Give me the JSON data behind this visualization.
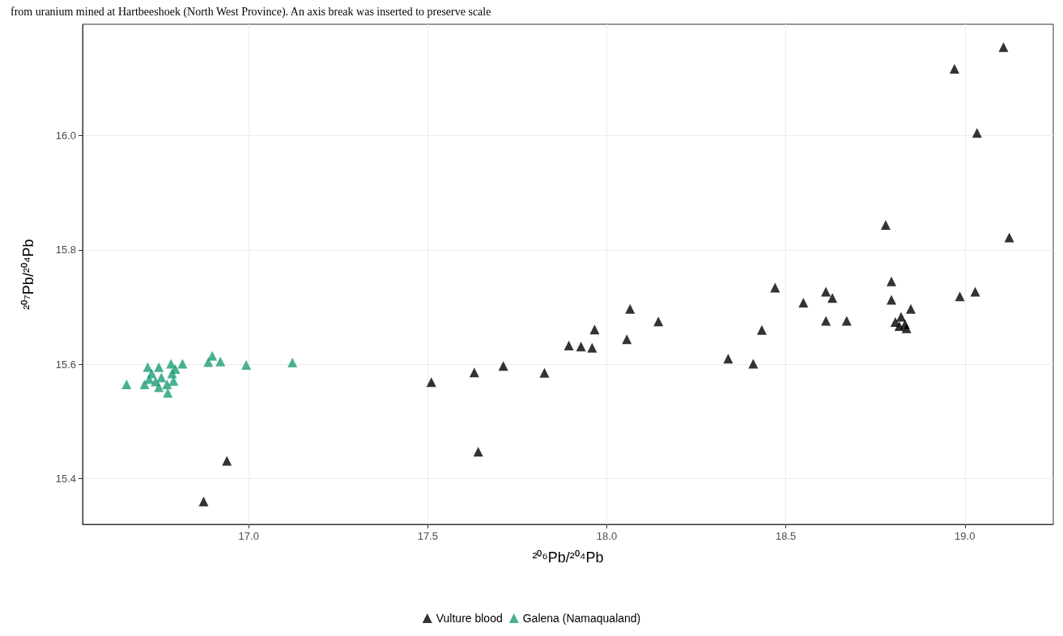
{
  "chart_data": {
    "type": "scatter",
    "title": "from uranium mined at Hartbeeshoek (North West Province). An axis break was inserted to preserve scale",
    "xlabel": "²⁰⁶Pb/²⁰⁴Pb",
    "ylabel": "²⁰⁷Pb/²⁰⁴Pb",
    "xlim": [
      16.536,
      19.247
    ],
    "ylim": [
      15.32,
      16.195
    ],
    "xticks": [
      {
        "value": 17,
        "label": "17.0"
      },
      17.5,
      {
        "value": 18,
        "label": "18.0"
      },
      18.5,
      {
        "value": 19,
        "label": "19.0"
      }
    ],
    "yticks": [
      15.4,
      15.6,
      15.8,
      {
        "value": 16,
        "label": "16.0"
      }
    ],
    "grid": true,
    "legend": "bottom",
    "marker": "triangle",
    "series": [
      {
        "name": "Vulture blood",
        "color": "#000000",
        "x": [
          16.874,
          16.939,
          17.51,
          17.63,
          17.641,
          17.711,
          17.826,
          17.894,
          17.928,
          17.959,
          17.966,
          18.056,
          18.065,
          18.144,
          18.339,
          18.409,
          18.433,
          18.47,
          18.549,
          18.612,
          18.63,
          18.612,
          18.67,
          18.779,
          18.795,
          18.795,
          18.806,
          18.822,
          18.817,
          18.837,
          18.849,
          18.833,
          18.986,
          19.029,
          19.034,
          18.971,
          19.108,
          19.124
        ],
        "values": [
          15.36,
          15.431,
          15.569,
          15.586,
          15.447,
          15.597,
          15.585,
          15.633,
          15.631,
          15.629,
          15.661,
          15.644,
          15.697,
          15.675,
          15.61,
          15.601,
          15.66,
          15.734,
          15.708,
          15.727,
          15.716,
          15.676,
          15.676,
          15.844,
          15.745,
          15.713,
          15.674,
          15.683,
          15.667,
          15.663,
          15.697,
          15.67,
          15.719,
          15.727,
          16.005,
          16.117,
          16.155,
          15.822
        ]
      },
      {
        "name": "Galena (Namaqualand)",
        "color": "#1b9e77",
        "x": [
          16.659,
          16.709,
          16.718,
          16.729,
          16.74,
          16.749,
          16.756,
          16.749,
          16.772,
          16.783,
          16.786,
          16.79,
          16.774,
          16.795,
          16.722,
          16.815,
          16.887,
          16.898,
          16.921,
          16.993,
          17.122
        ],
        "values": [
          15.565,
          15.565,
          15.595,
          15.584,
          15.57,
          15.595,
          15.577,
          15.56,
          15.565,
          15.601,
          15.584,
          15.571,
          15.55,
          15.592,
          15.574,
          15.601,
          15.604,
          15.615,
          15.605,
          15.599,
          15.603
        ]
      }
    ]
  }
}
